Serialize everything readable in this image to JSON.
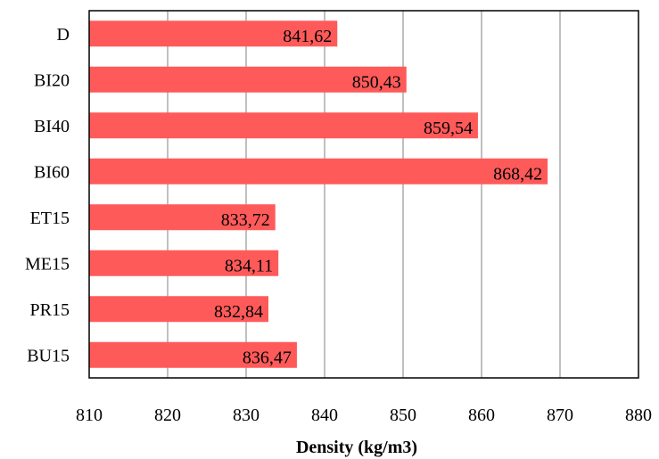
{
  "chart_data": {
    "type": "bar",
    "orientation": "horizontal",
    "categories": [
      "D",
      "BI20",
      "BI40",
      "BI60",
      "ET15",
      "ME15",
      "PR15",
      "BU15"
    ],
    "values": [
      841.62,
      850.43,
      859.54,
      868.42,
      833.72,
      834.11,
      832.84,
      836.47
    ],
    "data_labels": [
      "841,62",
      "850,43",
      "859,54",
      "868,42",
      "833,72",
      "834,11",
      "832,84",
      "836,47"
    ],
    "xlabel": "Density (kg/m3)",
    "ylabel": "",
    "title": "",
    "xlim": [
      810,
      880
    ],
    "xticks": [
      810,
      820,
      830,
      840,
      850,
      860,
      870,
      880
    ],
    "grid": "vertical",
    "legend": "none",
    "bar_color": "#ff5a5a",
    "grid_color": "#808080"
  }
}
